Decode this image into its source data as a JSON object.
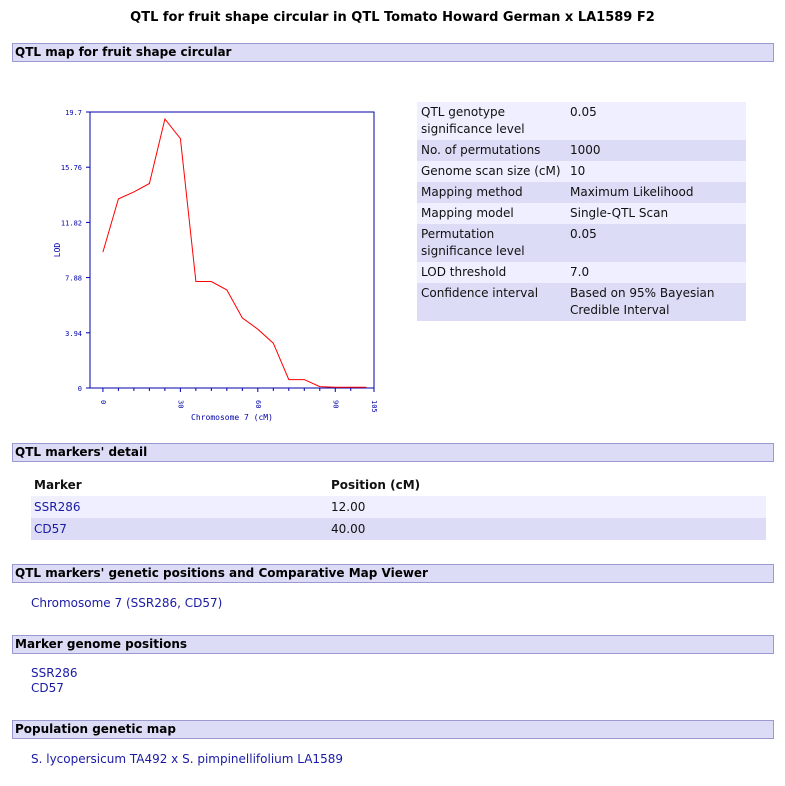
{
  "page_title": "QTL for fruit shape circular in QTL Tomato Howard German x LA1589 F2",
  "sections": {
    "qtl_map": "QTL map for fruit shape circular",
    "markers_detail": "QTL markers' detail",
    "genetic_positions": "QTL markers' genetic positions and Comparative Map Viewer",
    "genome_positions": "Marker genome positions",
    "population_map": "Population genetic map"
  },
  "params": [
    {
      "key": "QTL genotype significance level",
      "value": "0.05"
    },
    {
      "key": "No. of permutations",
      "value": "1000"
    },
    {
      "key": "Genome scan size (cM)",
      "value": "10"
    },
    {
      "key": "Mapping method",
      "value": "Maximum Likelihood"
    },
    {
      "key": "Mapping model",
      "value": "Single-QTL Scan"
    },
    {
      "key": "Permutation significance level",
      "value": "0.05"
    },
    {
      "key": "LOD threshold",
      "value": "7.0"
    },
    {
      "key": "Confidence interval",
      "value": "Based on 95% Bayesian Credible Interval"
    }
  ],
  "markers_table": {
    "headers": [
      "Marker",
      "Position (cM)"
    ],
    "rows": [
      {
        "marker": "SSR286",
        "position": "12.00"
      },
      {
        "marker": "CD57",
        "position": "40.00"
      }
    ]
  },
  "chromosome_link": "Chromosome 7 (SSR286, CD57)",
  "genome_markers": [
    "SSR286",
    "CD57"
  ],
  "population_link": "S. lycopersicum TA492 x S. pimpinellifolium LA1589",
  "chart_data": {
    "type": "line",
    "xlabel": "Chromosome 7 (cM)",
    "ylabel": "LOD",
    "xlim": [
      -5,
      105
    ],
    "ylim": [
      0,
      19.7
    ],
    "x_ticks": [
      0,
      30,
      60,
      90,
      105
    ],
    "y_ticks": [
      0,
      3.94,
      7.88,
      11.82,
      15.76,
      19.7
    ],
    "x_tick_labels": [
      "0",
      "30",
      "60",
      "90",
      "105"
    ],
    "y_tick_labels": [
      "0",
      "3.94",
      "7.88",
      "11.82",
      "15.76",
      "19.7"
    ],
    "series": [
      {
        "color": "#ff0000",
        "x": [
          0,
          6,
          12,
          18,
          24,
          30,
          36,
          42,
          48,
          54,
          60,
          66,
          72,
          78,
          84,
          90,
          96,
          102
        ],
        "y": [
          9.7,
          13.5,
          14.0,
          14.6,
          19.2,
          17.8,
          7.6,
          7.6,
          7.0,
          5.0,
          4.2,
          3.2,
          0.6,
          0.6,
          0.1,
          0.05,
          0.05,
          0.05
        ]
      }
    ],
    "colors": {
      "axis": "#0000aa",
      "line": "#ff0000"
    }
  }
}
